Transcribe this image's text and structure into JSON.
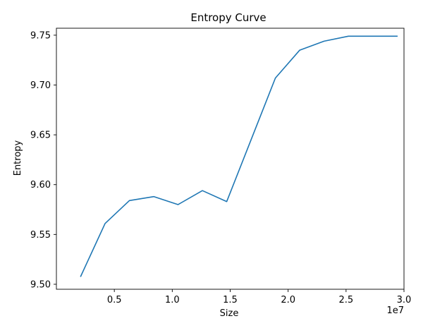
{
  "chart_data": {
    "type": "line",
    "title": "Entropy Curve",
    "xlabel": "Size",
    "ylabel": "Entropy",
    "x_offset_label": "1e7",
    "xlim": [
      0.0,
      3.0
    ],
    "ylim": [
      9.495,
      9.757
    ],
    "x_ticks": [
      0.5,
      1.0,
      1.5,
      2.0,
      2.5,
      3.0
    ],
    "x_tick_labels": [
      "0.5",
      "1.0",
      "1.5",
      "2.0",
      "2.5",
      "3.0"
    ],
    "y_ticks": [
      9.5,
      9.55,
      9.6,
      9.65,
      9.7,
      9.75
    ],
    "y_tick_labels": [
      "9.50",
      "9.55",
      "9.60",
      "9.65",
      "9.70",
      "9.75"
    ],
    "grid": false,
    "series": [
      {
        "color": "#1f77b4",
        "x": [
          0.21,
          0.42,
          0.63,
          0.84,
          1.05,
          1.26,
          1.47,
          1.68,
          1.89,
          2.1,
          2.31,
          2.52,
          2.73,
          2.94
        ],
        "y": [
          9.508,
          9.561,
          9.584,
          9.588,
          9.58,
          9.594,
          9.583,
          9.645,
          9.707,
          9.735,
          9.744,
          9.749,
          9.749,
          9.749
        ]
      }
    ]
  }
}
